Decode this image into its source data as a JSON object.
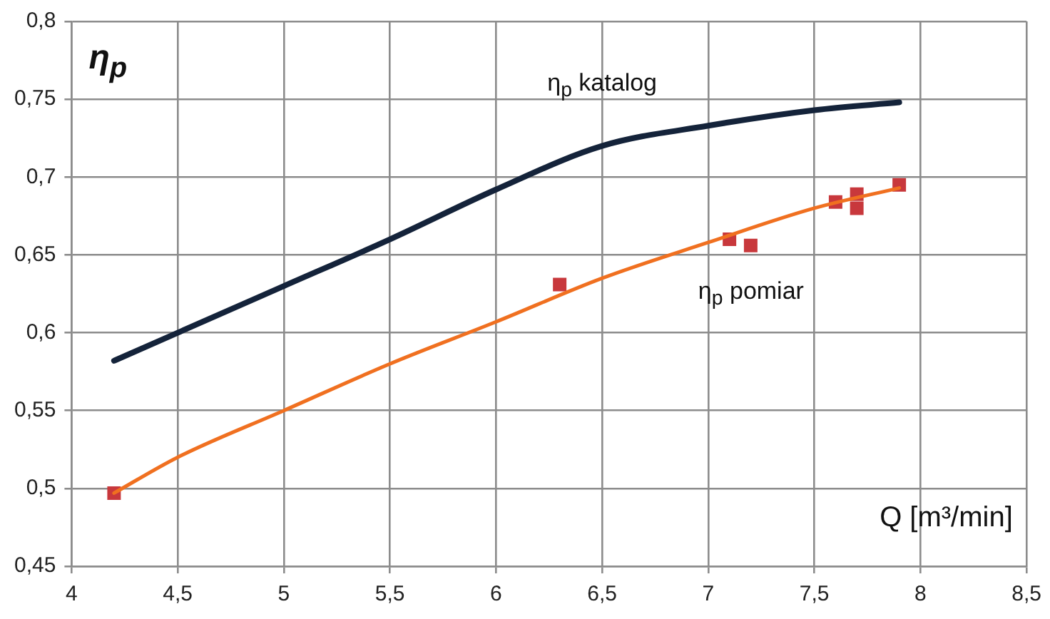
{
  "chart_data": {
    "type": "line",
    "xlabel": "Q [m³/min]",
    "ylabel": "η$_{p}$",
    "xlim": [
      4,
      8.5
    ],
    "xticks": [
      4,
      {
        "value": 4.5,
        "label": "4,5"
      },
      5,
      {
        "value": 5.5,
        "label": "5,5"
      },
      6,
      {
        "value": 6.5,
        "label": "6,5"
      },
      7,
      {
        "value": 7.5,
        "label": "7,5"
      },
      8,
      {
        "value": 8.5,
        "label": "8,5"
      }
    ],
    "ylim": [
      0.45,
      0.8
    ],
    "yticks": [
      {
        "value": 0.45,
        "label": "0,45"
      },
      {
        "value": 0.5,
        "label": "0,5"
      },
      {
        "value": 0.55,
        "label": "0,55"
      },
      {
        "value": 0.6,
        "label": "0,6"
      },
      {
        "value": 0.65,
        "label": "0,65"
      },
      {
        "value": 0.7,
        "label": "0,7"
      },
      {
        "value": 0.75,
        "label": "0,75"
      },
      {
        "value": 0.8,
        "label": "0,8"
      }
    ],
    "grid": true,
    "legend": false,
    "series": [
      {
        "name": "η$_{p}$ katalog",
        "color": "#14233a",
        "type": "line",
        "marker": "none",
        "x": [
          4.2,
          4.5,
          5,
          5.5,
          6,
          6.5,
          7,
          7.5,
          7.9
        ],
        "values": [
          0.582,
          0.6,
          0.63,
          0.66,
          0.692,
          0.72,
          0.733,
          0.743,
          0.748
        ]
      },
      {
        "name": "η$_{p}$ pomiar",
        "color": "#f07020",
        "type": "line",
        "marker": "none",
        "x": [
          4.2,
          4.5,
          5,
          5.5,
          6,
          6.5,
          7,
          7.5,
          7.9
        ],
        "values": [
          0.497,
          0.52,
          0.55,
          0.58,
          0.607,
          0.635,
          0.658,
          0.68,
          0.693
        ]
      },
      {
        "color": "#c8383c",
        "type": "scatter",
        "marker": "square",
        "x": [
          4.2,
          6.3,
          7.1,
          7.2,
          7.6,
          7.7,
          7.7,
          7.9
        ],
        "values": [
          0.497,
          0.631,
          0.66,
          0.656,
          0.684,
          0.689,
          0.68,
          0.695
        ]
      }
    ]
  }
}
